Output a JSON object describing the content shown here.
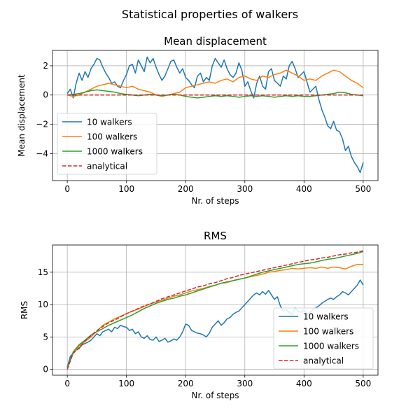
{
  "figure": {
    "suptitle": "Statistical properties of walkers"
  },
  "colors": {
    "c10": "#1f77b4",
    "c100": "#ff7f0e",
    "c1000": "#2ca02c",
    "analytical": "#d62728",
    "grid": "#b0b0b0"
  },
  "chart_data": [
    {
      "type": "line",
      "title": "Mean displacement",
      "xlabel": "Nr. of steps",
      "ylabel": "Mean displacement",
      "xlim": [
        -25,
        525
      ],
      "ylim": [
        -5.85,
        3.05
      ],
      "xticks": [
        0,
        100,
        200,
        300,
        400,
        500
      ],
      "yticks": [
        -4,
        -2,
        0,
        2
      ],
      "ytick_labels": [
        "−4",
        "−2",
        "0",
        "2"
      ],
      "grid": true,
      "legend": {
        "location": "center-left"
      },
      "series": [
        {
          "name": "10 walkers",
          "color": "#1f77b4",
          "style": "solid",
          "x": [
            0,
            5,
            10,
            15,
            20,
            25,
            30,
            35,
            40,
            45,
            50,
            55,
            60,
            65,
            70,
            75,
            80,
            85,
            90,
            95,
            100,
            105,
            110,
            115,
            120,
            125,
            130,
            135,
            140,
            145,
            150,
            155,
            160,
            165,
            170,
            175,
            180,
            185,
            190,
            195,
            200,
            205,
            210,
            215,
            220,
            225,
            230,
            235,
            240,
            245,
            250,
            255,
            260,
            265,
            270,
            275,
            280,
            285,
            290,
            295,
            300,
            305,
            310,
            315,
            320,
            325,
            330,
            335,
            340,
            345,
            350,
            355,
            360,
            365,
            370,
            375,
            380,
            385,
            390,
            395,
            400,
            405,
            410,
            415,
            420,
            425,
            430,
            435,
            440,
            445,
            450,
            455,
            460,
            465,
            470,
            475,
            480,
            485,
            490,
            495,
            500
          ],
          "y": [
            0.1,
            0.4,
            -0.2,
            0.8,
            1.5,
            1.0,
            1.6,
            1.2,
            1.8,
            2.1,
            2.5,
            2.4,
            1.9,
            1.5,
            1.2,
            0.8,
            0.9,
            0.6,
            0.5,
            1.0,
            1.4,
            2.0,
            2.1,
            1.5,
            2.4,
            2.0,
            1.6,
            2.6,
            2.2,
            2.5,
            1.9,
            1.4,
            1.0,
            1.3,
            1.8,
            2.3,
            2.4,
            1.9,
            1.5,
            1.8,
            1.2,
            1.0,
            0.7,
            0.5,
            1.3,
            1.5,
            0.9,
            1.2,
            1.0,
            2.0,
            2.5,
            2.2,
            1.9,
            2.4,
            1.8,
            1.4,
            1.2,
            1.5,
            2.2,
            1.7,
            0.6,
            0.9,
            0.3,
            -0.2,
            0.8,
            1.3,
            0.6,
            0.4,
            1.6,
            1.8,
            1.0,
            0.8,
            0.6,
            1.3,
            1.1,
            2.0,
            2.3,
            1.8,
            1.2,
            1.4,
            1.6,
            0.9,
            0.2,
            0.4,
            0.6,
            -0.3,
            -1.0,
            -1.5,
            -2.1,
            -2.3,
            -1.8,
            -2.4,
            -2.5,
            -3.0,
            -3.8,
            -3.5,
            -4.2,
            -4.6,
            -4.9,
            -5.3,
            -4.6
          ]
        },
        {
          "name": "100 walkers",
          "color": "#ff7f0e",
          "style": "solid",
          "x": [
            0,
            10,
            20,
            30,
            40,
            50,
            60,
            70,
            80,
            90,
            100,
            110,
            120,
            130,
            140,
            150,
            160,
            170,
            180,
            190,
            200,
            210,
            220,
            230,
            240,
            250,
            260,
            270,
            280,
            290,
            300,
            310,
            320,
            330,
            340,
            350,
            360,
            370,
            380,
            390,
            400,
            410,
            420,
            430,
            440,
            450,
            460,
            470,
            480,
            490,
            500
          ],
          "y": [
            0.0,
            -0.1,
            0.0,
            0.2,
            0.4,
            0.6,
            0.7,
            0.8,
            0.7,
            0.6,
            0.5,
            0.6,
            0.4,
            0.3,
            0.2,
            0.0,
            -0.1,
            0.0,
            0.1,
            0.2,
            0.5,
            0.6,
            0.7,
            0.8,
            0.9,
            0.8,
            1.0,
            1.1,
            0.9,
            1.2,
            1.3,
            1.1,
            1.0,
            1.3,
            1.2,
            1.4,
            1.5,
            1.7,
            1.5,
            1.3,
            1.0,
            1.1,
            1.0,
            1.3,
            1.5,
            1.7,
            1.6,
            1.3,
            1.0,
            0.8,
            0.5
          ]
        },
        {
          "name": "1000 walkers",
          "color": "#2ca02c",
          "style": "solid",
          "x": [
            0,
            10,
            20,
            30,
            40,
            50,
            60,
            70,
            80,
            90,
            100,
            110,
            120,
            130,
            140,
            150,
            160,
            170,
            180,
            190,
            200,
            210,
            220,
            230,
            240,
            250,
            260,
            270,
            280,
            290,
            300,
            310,
            320,
            330,
            340,
            350,
            360,
            370,
            380,
            390,
            400,
            410,
            420,
            430,
            440,
            450,
            460,
            470,
            480,
            490,
            500
          ],
          "y": [
            0.0,
            0.05,
            0.1,
            0.2,
            0.3,
            0.35,
            0.3,
            0.25,
            0.2,
            0.1,
            0.05,
            0.0,
            -0.05,
            0.0,
            0.05,
            0.0,
            -0.05,
            0.0,
            0.05,
            0.0,
            -0.1,
            -0.15,
            -0.2,
            -0.15,
            -0.1,
            -0.05,
            -0.1,
            -0.05,
            -0.1,
            -0.15,
            -0.1,
            -0.05,
            -0.1,
            -0.05,
            -0.1,
            -0.15,
            -0.1,
            -0.05,
            -0.1,
            -0.05,
            -0.1,
            -0.1,
            -0.05,
            0.0,
            0.05,
            0.1,
            0.2,
            0.15,
            0.05,
            0.0,
            -0.05
          ]
        },
        {
          "name": "analytical",
          "color": "#d62728",
          "style": "dashed",
          "x": [
            0,
            500
          ],
          "y": [
            0,
            0
          ]
        }
      ]
    },
    {
      "type": "line",
      "title": "RMS",
      "xlabel": "Nr. of steps",
      "ylabel": "RMS",
      "xlim": [
        -25,
        525
      ],
      "ylim": [
        -0.9,
        19.2
      ],
      "xticks": [
        0,
        100,
        200,
        300,
        400,
        500
      ],
      "yticks": [
        0,
        5,
        10,
        15
      ],
      "ytick_labels": [
        "0",
        "5",
        "10",
        "15"
      ],
      "grid": true,
      "legend": {
        "location": "lower-right"
      },
      "series": [
        {
          "name": "10 walkers",
          "color": "#1f77b4",
          "style": "solid",
          "x": [
            0,
            5,
            10,
            15,
            20,
            25,
            30,
            35,
            40,
            45,
            50,
            55,
            60,
            65,
            70,
            75,
            80,
            85,
            90,
            95,
            100,
            105,
            110,
            115,
            120,
            125,
            130,
            135,
            140,
            145,
            150,
            155,
            160,
            165,
            170,
            175,
            180,
            185,
            190,
            195,
            200,
            205,
            210,
            215,
            220,
            225,
            230,
            235,
            240,
            245,
            250,
            255,
            260,
            265,
            270,
            275,
            280,
            285,
            290,
            295,
            300,
            305,
            310,
            315,
            320,
            325,
            330,
            335,
            340,
            345,
            350,
            355,
            360,
            365,
            370,
            375,
            380,
            385,
            390,
            395,
            400,
            405,
            410,
            415,
            420,
            425,
            430,
            435,
            440,
            445,
            450,
            455,
            460,
            465,
            470,
            475,
            480,
            485,
            490,
            495,
            500
          ],
          "y": [
            0.3,
            2.0,
            2.5,
            3.0,
            3.2,
            3.8,
            4.0,
            4.2,
            4.5,
            5.0,
            5.5,
            5.2,
            5.8,
            6.0,
            6.2,
            5.8,
            6.5,
            6.3,
            6.8,
            6.6,
            6.5,
            6.0,
            6.2,
            5.5,
            5.8,
            5.0,
            4.8,
            5.2,
            4.6,
            4.5,
            5.0,
            4.3,
            4.5,
            4.8,
            4.2,
            4.4,
            4.7,
            4.5,
            5.0,
            5.8,
            7.0,
            6.8,
            6.0,
            5.8,
            5.6,
            5.5,
            5.3,
            5.0,
            5.6,
            6.5,
            7.0,
            7.5,
            6.8,
            7.2,
            7.8,
            8.0,
            8.5,
            8.8,
            9.0,
            9.5,
            10.0,
            10.5,
            11.0,
            11.5,
            11.8,
            11.5,
            12.0,
            11.6,
            12.2,
            11.5,
            10.8,
            11.2,
            9.8,
            9.0,
            9.2,
            8.8,
            8.5,
            9.5,
            9.0,
            8.8,
            9.2,
            8.5,
            8.8,
            9.2,
            9.5,
            9.8,
            10.2,
            10.5,
            10.8,
            11.0,
            10.8,
            11.2,
            11.5,
            12.0,
            11.8,
            11.5,
            12.0,
            12.5,
            13.0,
            13.8,
            13.0
          ]
        },
        {
          "name": "100 walkers",
          "color": "#ff7f0e",
          "style": "solid",
          "x": [
            0,
            10,
            20,
            30,
            40,
            50,
            60,
            70,
            80,
            90,
            100,
            110,
            120,
            130,
            140,
            150,
            160,
            170,
            180,
            190,
            200,
            210,
            220,
            230,
            240,
            250,
            260,
            270,
            280,
            290,
            300,
            310,
            320,
            330,
            340,
            350,
            360,
            370,
            380,
            390,
            400,
            410,
            420,
            430,
            440,
            450,
            460,
            470,
            480,
            490,
            500
          ],
          "y": [
            0.2,
            2.5,
            3.6,
            4.3,
            5.0,
            5.9,
            6.8,
            7.3,
            7.8,
            8.2,
            8.6,
            9.0,
            9.3,
            9.7,
            10.1,
            10.4,
            10.7,
            11.0,
            11.3,
            11.5,
            11.8,
            12.1,
            12.3,
            12.5,
            12.8,
            13.0,
            13.3,
            13.4,
            13.7,
            13.9,
            14.1,
            14.3,
            14.5,
            14.7,
            15.0,
            15.1,
            15.3,
            15.4,
            15.6,
            15.5,
            15.6,
            15.7,
            15.6,
            15.8,
            15.6,
            15.8,
            15.7,
            15.5,
            15.9,
            16.2,
            16.2
          ]
        },
        {
          "name": "1000 walkers",
          "color": "#2ca02c",
          "style": "solid",
          "x": [
            0,
            10,
            20,
            30,
            40,
            50,
            60,
            70,
            80,
            90,
            100,
            110,
            120,
            130,
            140,
            150,
            160,
            170,
            180,
            190,
            200,
            210,
            220,
            230,
            240,
            250,
            260,
            270,
            280,
            290,
            300,
            310,
            320,
            330,
            340,
            350,
            360,
            370,
            380,
            390,
            400,
            410,
            420,
            430,
            440,
            450,
            460,
            470,
            480,
            490,
            500
          ],
          "y": [
            0.2,
            2.7,
            3.8,
            4.5,
            5.3,
            5.8,
            6.3,
            6.8,
            7.2,
            7.6,
            8.0,
            8.4,
            8.9,
            9.4,
            9.8,
            10.2,
            10.5,
            10.8,
            11.0,
            11.3,
            11.5,
            11.8,
            12.1,
            12.4,
            12.7,
            13.0,
            13.3,
            13.5,
            13.7,
            13.9,
            14.1,
            14.4,
            14.7,
            15.0,
            15.2,
            15.4,
            15.6,
            15.8,
            16.0,
            16.2,
            16.3,
            16.4,
            16.6,
            16.8,
            17.0,
            17.1,
            17.3,
            17.5,
            17.7,
            17.9,
            18.2
          ]
        },
        {
          "name": "analytical",
          "color": "#d62728",
          "style": "dashed",
          "x": [
            0,
            10,
            20,
            30,
            40,
            50,
            60,
            70,
            80,
            90,
            100,
            110,
            120,
            130,
            140,
            150,
            160,
            170,
            180,
            190,
            200,
            210,
            220,
            230,
            240,
            250,
            260,
            270,
            280,
            290,
            300,
            310,
            320,
            330,
            340,
            350,
            360,
            370,
            380,
            390,
            400,
            410,
            420,
            430,
            440,
            450,
            460,
            470,
            480,
            490,
            500
          ],
          "y": [
            0,
            2.5,
            3.3,
            4.4,
            5.2,
            6.0,
            6.6,
            7.2,
            7.6,
            8.1,
            8.6,
            9.0,
            9.4,
            9.8,
            10.1,
            10.5,
            10.9,
            11.2,
            11.5,
            11.8,
            12.1,
            12.4,
            12.7,
            12.9,
            13.2,
            13.4,
            13.7,
            14.0,
            14.2,
            14.5,
            14.7,
            14.9,
            15.1,
            15.3,
            15.5,
            15.7,
            15.9,
            16.1,
            16.3,
            16.5,
            16.7,
            16.9,
            17.0,
            17.2,
            17.3,
            17.5,
            17.7,
            17.8,
            18.0,
            18.1,
            18.3
          ]
        }
      ]
    }
  ]
}
